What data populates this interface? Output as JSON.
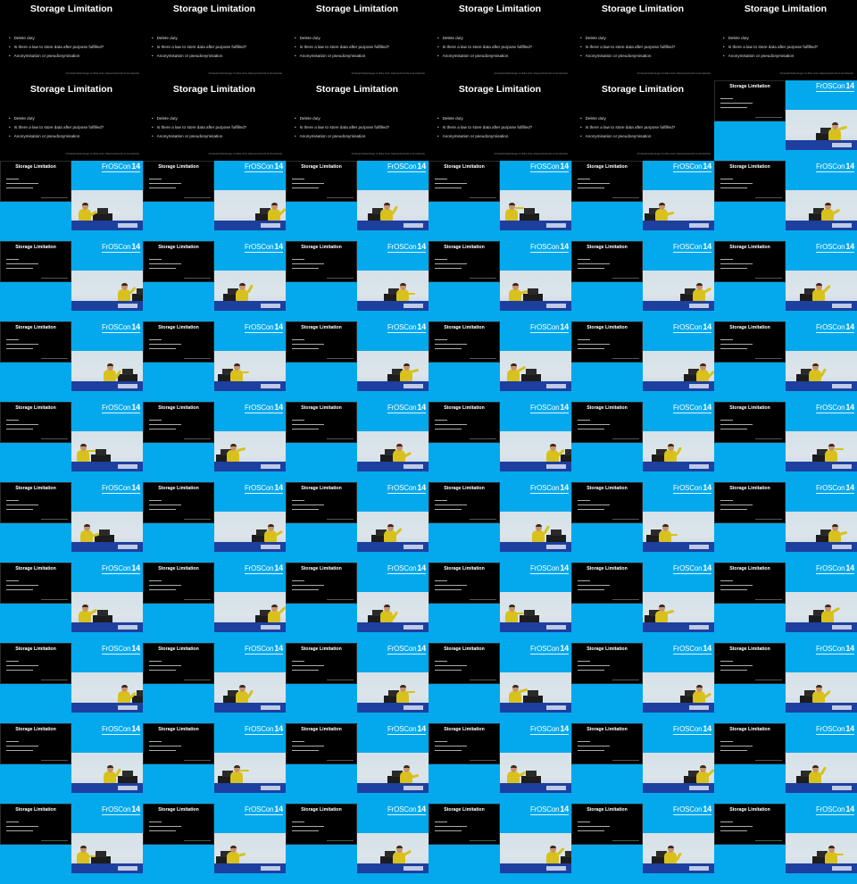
{
  "slide": {
    "title": "Storage Limitation",
    "bullets": [
      "Delete duty",
      "Is there a law to store data after purpose fulfilled?",
      "Anonymisation or pseudonymisation"
    ],
    "footer": "Christoph Reifenberger & Ulrike Grün, Datenschutzrecht & Grundrechte"
  },
  "stream": {
    "mini_title": "Storage Limitation",
    "logo_text": "FrOSCon",
    "logo_number": "14"
  },
  "grid": {
    "columns": 6,
    "rows": 11,
    "full_slide_tiles": 11
  },
  "colors": {
    "stream_background": "#03a9ec",
    "slide_background": "#000000",
    "banner": "#1d3fa0",
    "shirt": "#d8c11c"
  },
  "icons": [
    "froscon-logo"
  ]
}
